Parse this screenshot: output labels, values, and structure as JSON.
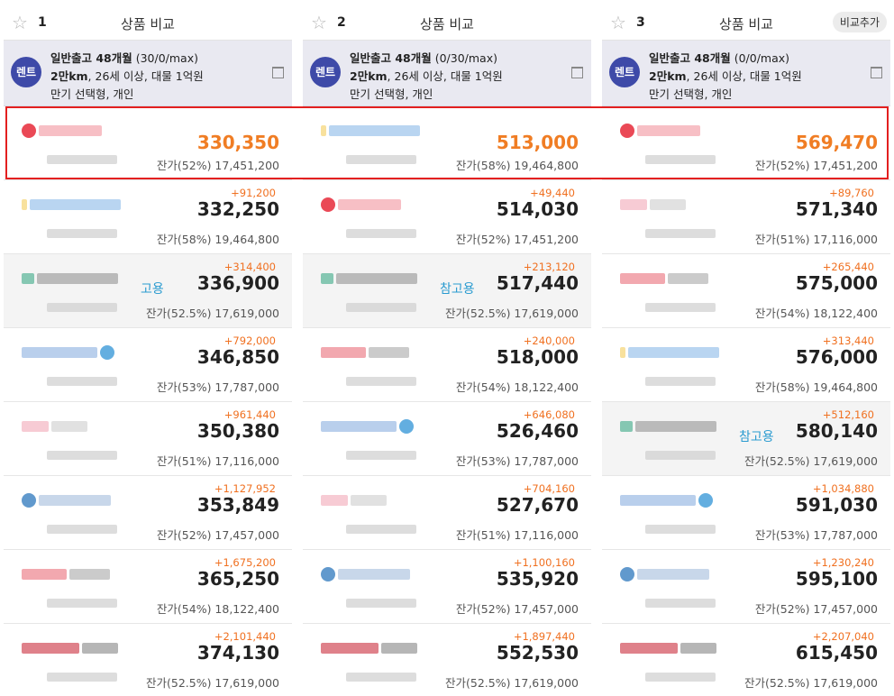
{
  "columns": [
    {
      "number": "1",
      "title": "상품 비교",
      "add_button": "",
      "rent_badge": "렌트",
      "cond": {
        "line1_bold": "일반출고 48개월",
        "line1_rest": " (30/0/max)",
        "line2_bold": "2만km",
        "line2_rest": ", 26세 이상, 대물 1억원",
        "line3": "만기 선택형, 개인"
      },
      "rows": [
        {
          "diff": "",
          "price": "330,350",
          "residual": "잔가(52%) 17,451,200",
          "ref": "",
          "logo": "red"
        },
        {
          "diff": "+91,200",
          "price": "332,250",
          "residual": "잔가(58%) 19,464,800",
          "ref": "",
          "logo": "yellowblue"
        },
        {
          "diff": "+314,400",
          "price": "336,900",
          "residual": "잔가(52.5%) 17,619,000",
          "ref": "고용",
          "logo": "green"
        },
        {
          "diff": "+792,000",
          "price": "346,850",
          "residual": "잔가(53%) 17,787,000",
          "ref": "",
          "logo": "blue"
        },
        {
          "diff": "+961,440",
          "price": "350,380",
          "residual": "잔가(51%) 17,116,000",
          "ref": "",
          "logo": "pink"
        },
        {
          "diff": "+1,127,952",
          "price": "353,849",
          "residual": "잔가(52%) 17,457,000",
          "ref": "",
          "logo": "bluedot"
        },
        {
          "diff": "+1,675,200",
          "price": "365,250",
          "residual": "잔가(54%) 18,122,400",
          "ref": "",
          "logo": "redgray"
        },
        {
          "diff": "+2,101,440",
          "price": "374,130",
          "residual": "잔가(52.5%) 17,619,000",
          "ref": "",
          "logo": "darkred"
        }
      ]
    },
    {
      "number": "2",
      "title": "상품 비교",
      "add_button": "",
      "rent_badge": "렌트",
      "cond": {
        "line1_bold": "일반출고 48개월",
        "line1_rest": " (0/30/max)",
        "line2_bold": "2만km",
        "line2_rest": ", 26세 이상, 대물 1억원",
        "line3": "만기 선택형, 개인"
      },
      "rows": [
        {
          "diff": "",
          "price": "513,000",
          "residual": "잔가(58%) 19,464,800",
          "ref": "",
          "logo": "yellowblue"
        },
        {
          "diff": "+49,440",
          "price": "514,030",
          "residual": "잔가(52%) 17,451,200",
          "ref": "",
          "logo": "red"
        },
        {
          "diff": "+213,120",
          "price": "517,440",
          "residual": "잔가(52.5%) 17,619,000",
          "ref": "참고용",
          "logo": "green"
        },
        {
          "diff": "+240,000",
          "price": "518,000",
          "residual": "잔가(54%) 18,122,400",
          "ref": "",
          "logo": "redgray"
        },
        {
          "diff": "+646,080",
          "price": "526,460",
          "residual": "잔가(53%) 17,787,000",
          "ref": "",
          "logo": "blue"
        },
        {
          "diff": "+704,160",
          "price": "527,670",
          "residual": "잔가(51%) 17,116,000",
          "ref": "",
          "logo": "pink"
        },
        {
          "diff": "+1,100,160",
          "price": "535,920",
          "residual": "잔가(52%) 17,457,000",
          "ref": "",
          "logo": "bluedot"
        },
        {
          "diff": "+1,897,440",
          "price": "552,530",
          "residual": "잔가(52.5%) 17,619,000",
          "ref": "",
          "logo": "darkred"
        }
      ]
    },
    {
      "number": "3",
      "title": "상품 비교",
      "add_button": "비교추가",
      "rent_badge": "렌트",
      "cond": {
        "line1_bold": "일반출고 48개월",
        "line1_rest": " (0/0/max)",
        "line2_bold": "2만km",
        "line2_rest": ", 26세 이상, 대물 1억원",
        "line3": "만기 선택형, 개인"
      },
      "rows": [
        {
          "diff": "",
          "price": "569,470",
          "residual": "잔가(52%) 17,451,200",
          "ref": "",
          "logo": "red"
        },
        {
          "diff": "+89,760",
          "price": "571,340",
          "residual": "잔가(51%) 17,116,000",
          "ref": "",
          "logo": "pink"
        },
        {
          "diff": "+265,440",
          "price": "575,000",
          "residual": "잔가(54%) 18,122,400",
          "ref": "",
          "logo": "redgray"
        },
        {
          "diff": "+313,440",
          "price": "576,000",
          "residual": "잔가(58%) 19,464,800",
          "ref": "",
          "logo": "yellowblue"
        },
        {
          "diff": "+512,160",
          "price": "580,140",
          "residual": "잔가(52.5%) 17,619,000",
          "ref": "참고용",
          "logo": "green"
        },
        {
          "diff": "+1,034,880",
          "price": "591,030",
          "residual": "잔가(53%) 17,787,000",
          "ref": "",
          "logo": "blue"
        },
        {
          "diff": "+1,230,240",
          "price": "595,100",
          "residual": "잔가(52%) 17,457,000",
          "ref": "",
          "logo": "bluedot"
        },
        {
          "diff": "+2,207,040",
          "price": "615,450",
          "residual": "잔가(52.5%) 17,619,000",
          "ref": "",
          "logo": "darkred"
        }
      ]
    }
  ],
  "colors": {
    "accent_orange": "#f07d24",
    "badge_blue": "#3e4aa8",
    "ref_blue": "#2a9bd0",
    "highlight_red": "#e32020"
  }
}
